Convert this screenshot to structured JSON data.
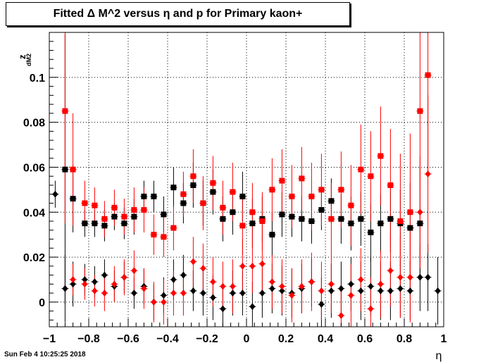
{
  "chart_data": {
    "type": "scatter",
    "title": "Fitted Δ M^2 versus η and p for Primary kaon+",
    "xlabel": "η",
    "ylabel": "z",
    "ylabel_sub": "dM2",
    "xlim": [
      -1,
      1
    ],
    "ylim": [
      -0.011,
      0.12
    ],
    "xticks": [
      -1,
      -0.8,
      -0.6,
      -0.4,
      -0.2,
      0,
      0.2,
      0.4,
      0.6,
      0.8,
      1
    ],
    "xtick_labels": [
      "−1",
      "−0.8",
      "−0.6",
      "−0.4",
      "−0.2",
      "0",
      "0.2",
      "0.4",
      "0.6",
      "0.8",
      "1"
    ],
    "yticks": [
      0,
      0.02,
      0.04,
      0.06,
      0.08,
      0.1
    ],
    "ytick_labels": [
      "0",
      "0.02",
      "0.04",
      "0.06",
      "0.08",
      "0.1"
    ],
    "grid": true,
    "series": [
      {
        "color": "#000000",
        "marker": "square",
        "points": [
          [
            -0.92,
            0.059,
            0.06
          ],
          [
            -0.88,
            0.046,
            0.015
          ],
          [
            -0.82,
            0.035,
            0.006
          ],
          [
            -0.77,
            0.035,
            0.006
          ],
          [
            -0.72,
            0.034,
            0.007
          ],
          [
            -0.67,
            0.038,
            0.006
          ],
          [
            -0.62,
            0.035,
            0.007
          ],
          [
            -0.57,
            0.038,
            0.008
          ],
          [
            -0.52,
            0.047,
            0.007
          ],
          [
            -0.47,
            0.047,
            0.007
          ],
          [
            -0.42,
            0.039,
            0.008
          ],
          [
            -0.37,
            0.051,
            0.009
          ],
          [
            -0.32,
            0.044,
            0.009
          ],
          [
            -0.27,
            0.052,
            0.01
          ],
          [
            -0.22,
            0.044,
            0.01
          ],
          [
            -0.17,
            0.049,
            0.01
          ],
          [
            -0.12,
            0.037,
            0.01
          ],
          [
            -0.07,
            0.04,
            0.01
          ],
          [
            -0.02,
            0.047,
            0.011
          ],
          [
            0.03,
            0.035,
            0.011
          ],
          [
            0.08,
            0.037,
            0.01
          ],
          [
            0.13,
            0.03,
            0.01
          ],
          [
            0.18,
            0.039,
            0.01
          ],
          [
            0.23,
            0.038,
            0.009
          ],
          [
            0.28,
            0.037,
            0.01
          ],
          [
            0.33,
            0.036,
            0.01
          ],
          [
            0.38,
            0.041,
            0.009
          ],
          [
            0.43,
            0.045,
            0.01
          ],
          [
            0.48,
            0.037,
            0.011
          ],
          [
            0.53,
            0.035,
            0.012
          ],
          [
            0.58,
            0.037,
            0.012
          ],
          [
            0.63,
            0.031,
            0.013
          ],
          [
            0.68,
            0.035,
            0.013
          ],
          [
            0.73,
            0.037,
            0.015
          ],
          [
            0.78,
            0.035,
            0.015
          ],
          [
            0.83,
            0.033,
            0.02
          ],
          [
            0.88,
            0.035,
            0.025
          ]
        ]
      },
      {
        "color": "#ff0000",
        "marker": "square",
        "points": [
          [
            -0.92,
            0.085,
            0.05
          ],
          [
            -0.88,
            0.059,
            0.025
          ],
          [
            -0.82,
            0.044,
            0.01
          ],
          [
            -0.77,
            0.043,
            0.008
          ],
          [
            -0.72,
            0.037,
            0.008
          ],
          [
            -0.67,
            0.042,
            0.008
          ],
          [
            -0.62,
            0.038,
            0.008
          ],
          [
            -0.57,
            0.041,
            0.01
          ],
          [
            -0.52,
            0.041,
            0.01
          ],
          [
            -0.47,
            0.03,
            0.009
          ],
          [
            -0.42,
            0.029,
            0.009
          ],
          [
            -0.37,
            0.033,
            0.01
          ],
          [
            -0.32,
            0.048,
            0.01
          ],
          [
            -0.27,
            0.056,
            0.012
          ],
          [
            -0.22,
            0.044,
            0.012
          ],
          [
            -0.17,
            0.053,
            0.012
          ],
          [
            -0.12,
            0.042,
            0.012
          ],
          [
            -0.07,
            0.049,
            0.013
          ],
          [
            -0.02,
            0.034,
            0.013
          ],
          [
            0.03,
            0.04,
            0.013
          ],
          [
            0.08,
            0.036,
            0.013
          ],
          [
            0.13,
            0.05,
            0.014
          ],
          [
            0.18,
            0.054,
            0.014
          ],
          [
            0.23,
            0.047,
            0.014
          ],
          [
            0.28,
            0.055,
            0.014
          ],
          [
            0.33,
            0.047,
            0.015
          ],
          [
            0.38,
            0.05,
            0.016
          ],
          [
            0.43,
            0.037,
            0.016
          ],
          [
            0.48,
            0.05,
            0.017
          ],
          [
            0.53,
            0.043,
            0.018
          ],
          [
            0.58,
            0.059,
            0.02
          ],
          [
            0.63,
            0.056,
            0.02
          ],
          [
            0.68,
            0.065,
            0.022
          ],
          [
            0.73,
            0.052,
            0.025
          ],
          [
            0.78,
            0.036,
            0.03
          ],
          [
            0.83,
            0.04,
            0.035
          ],
          [
            0.88,
            0.085,
            0.035
          ],
          [
            0.92,
            0.101,
            0.045
          ]
        ]
      },
      {
        "color": "#000000",
        "marker": "diamond",
        "points": [
          [
            -0.97,
            0.048,
            0.006
          ],
          [
            -0.92,
            0.006,
            0.015
          ],
          [
            -0.88,
            0.008,
            0.01
          ],
          [
            -0.82,
            0.01,
            0.007
          ],
          [
            -0.77,
            0.009,
            0.007
          ],
          [
            -0.72,
            0.012,
            0.007
          ],
          [
            -0.67,
            0.007,
            0.007
          ],
          [
            -0.62,
            0.011,
            0.007
          ],
          [
            -0.57,
            0.004,
            0.007
          ],
          [
            -0.52,
            0.007,
            0.008
          ],
          [
            -0.47,
            0.0,
            0.008
          ],
          [
            -0.42,
            0.003,
            0.008
          ],
          [
            -0.37,
            0.01,
            0.009
          ],
          [
            -0.32,
            0.012,
            0.009
          ],
          [
            -0.27,
            0.005,
            0.009
          ],
          [
            -0.22,
            0.004,
            0.01
          ],
          [
            -0.17,
            0.002,
            0.01
          ],
          [
            -0.12,
            -0.003,
            0.01
          ],
          [
            -0.07,
            0.004,
            0.01
          ],
          [
            -0.02,
            0.004,
            0.01
          ],
          [
            0.03,
            -0.002,
            0.011
          ],
          [
            0.08,
            0.004,
            0.011
          ],
          [
            0.13,
            0.006,
            0.011
          ],
          [
            0.18,
            0.005,
            0.011
          ],
          [
            0.23,
            0.004,
            0.011
          ],
          [
            0.28,
            0.006,
            0.011
          ],
          [
            0.33,
            0.009,
            0.011
          ],
          [
            0.38,
            -0.001,
            0.012
          ],
          [
            0.43,
            0.005,
            0.012
          ],
          [
            0.48,
            0.006,
            0.012
          ],
          [
            0.53,
            0.008,
            0.012
          ],
          [
            0.58,
            0.005,
            0.013
          ],
          [
            0.63,
            0.007,
            0.013
          ],
          [
            0.68,
            0.005,
            0.013
          ],
          [
            0.73,
            0.005,
            0.013
          ],
          [
            0.78,
            0.006,
            0.013
          ],
          [
            0.83,
            0.005,
            0.013
          ],
          [
            0.88,
            0.011,
            0.015
          ],
          [
            0.92,
            0.011,
            0.015
          ],
          [
            0.97,
            0.005,
            0.015
          ]
        ]
      },
      {
        "color": "#ff0000",
        "marker": "diamond",
        "points": [
          [
            -0.88,
            0.01,
            0.007
          ],
          [
            -0.82,
            0.008,
            0.007
          ],
          [
            -0.77,
            0.005,
            0.007
          ],
          [
            -0.72,
            0.004,
            0.008
          ],
          [
            -0.67,
            0.008,
            0.008
          ],
          [
            -0.62,
            0.011,
            0.008
          ],
          [
            -0.57,
            0.014,
            0.009
          ],
          [
            -0.52,
            0.006,
            0.009
          ],
          [
            -0.47,
            0.0,
            0.009
          ],
          [
            -0.42,
            0.0,
            0.01
          ],
          [
            -0.37,
            0.004,
            0.01
          ],
          [
            -0.32,
            0.004,
            0.01
          ],
          [
            -0.27,
            0.018,
            0.011
          ],
          [
            -0.22,
            0.015,
            0.011
          ],
          [
            -0.17,
            0.009,
            0.011
          ],
          [
            -0.12,
            0.007,
            0.011
          ],
          [
            -0.07,
            0.007,
            0.012
          ],
          [
            -0.02,
            0.016,
            0.012
          ],
          [
            0.03,
            0.016,
            0.012
          ],
          [
            0.08,
            0.017,
            0.012
          ],
          [
            0.13,
            0.009,
            0.012
          ],
          [
            0.18,
            0.007,
            0.012
          ],
          [
            0.23,
            0.003,
            0.012
          ],
          [
            0.28,
            0.007,
            0.012
          ],
          [
            0.33,
            0.009,
            0.013
          ],
          [
            0.38,
            0.005,
            0.013
          ],
          [
            0.43,
            0.008,
            0.013
          ],
          [
            0.48,
            -0.006,
            0.013
          ],
          [
            0.53,
            0.003,
            0.014
          ],
          [
            0.58,
            0.01,
            0.014
          ],
          [
            0.63,
            -0.003,
            0.014
          ],
          [
            0.68,
            0.008,
            0.015
          ],
          [
            0.73,
            0.014,
            0.016
          ],
          [
            0.78,
            0.011,
            0.018
          ],
          [
            0.83,
            0.011,
            0.02
          ],
          [
            0.88,
            0.04,
            0.025
          ],
          [
            0.92,
            0.057,
            0.035
          ]
        ]
      }
    ]
  },
  "footer": {
    "timestamp": "Sun Feb  4 10:25:25 2018"
  }
}
